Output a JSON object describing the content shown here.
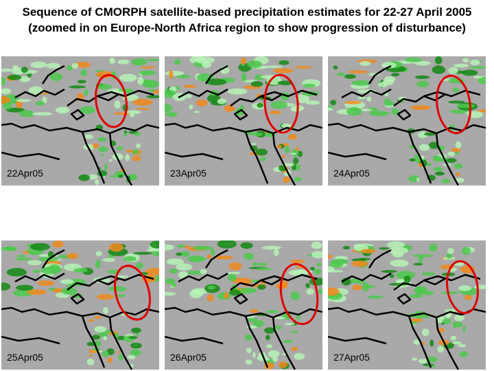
{
  "title": {
    "line1": "Sequence of CMORPH satellite-based precipitation estimates for 22-27 April 2005",
    "line2": "(zoomed in on Europe-North Africa region to show progression of disturbance)"
  },
  "panels": [
    {
      "date": "22Apr05"
    },
    {
      "date": "23Apr05"
    },
    {
      "date": "24Apr05"
    },
    {
      "date": "25Apr05"
    },
    {
      "date": "26Apr05"
    },
    {
      "date": "27Apr05"
    }
  ],
  "colors": {
    "background": "#a9a9a9",
    "coastline": "#000000",
    "light_rain": "#b6f2b6",
    "moderate_rain": "#4cc94c",
    "heavy_rain": "#138a13",
    "very_heavy_rain": "#f08a1c",
    "highlight_ellipse": "#e00000"
  }
}
